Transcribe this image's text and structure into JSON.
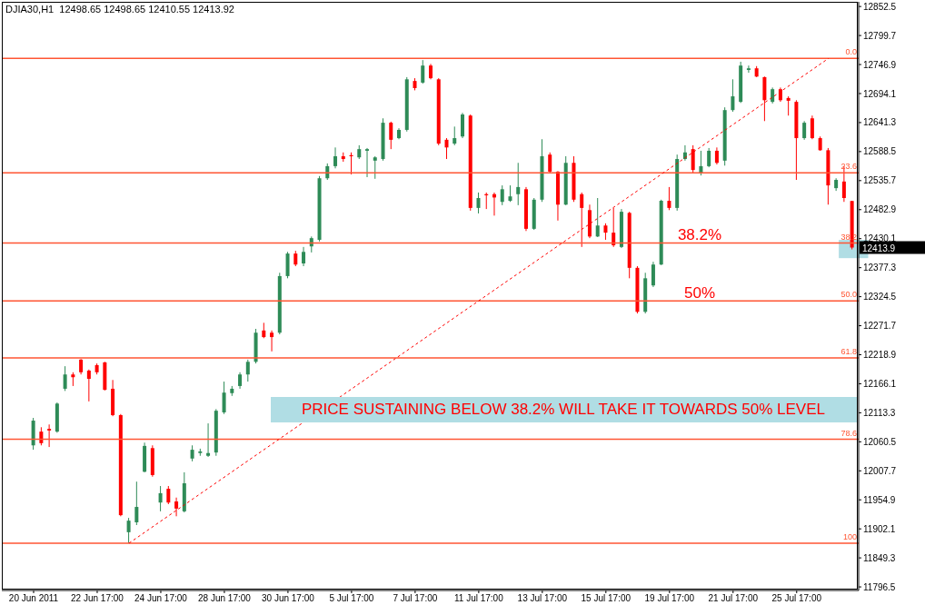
{
  "chart_data": {
    "type": "candlestick",
    "title": "DJIA30,H1  12498.65 12498.65 12410.55 12413.92",
    "categories": [
      "20 Jun 2011",
      null,
      null,
      null,
      null,
      null,
      null,
      null,
      "22 Jun 17:00",
      null,
      null,
      null,
      null,
      null,
      null,
      null,
      "24 Jun 17:00",
      null,
      null,
      null,
      null,
      null,
      null,
      null,
      "28 Jun 17:00",
      null,
      null,
      null,
      null,
      null,
      null,
      null,
      "30 Jun 17:00",
      null,
      null,
      null,
      null,
      null,
      null,
      null,
      "5 Jul 17:00",
      null,
      null,
      null,
      null,
      null,
      null,
      null,
      "7 Jul 17:00",
      null,
      null,
      null,
      null,
      null,
      null,
      null,
      "11 Jul 17:00",
      null,
      null,
      null,
      null,
      null,
      null,
      null,
      "13 Jul 17:00",
      null,
      null,
      null,
      null,
      null,
      null,
      null,
      "15 Jul 17:00",
      null,
      null,
      null,
      null,
      null,
      null,
      null,
      "19 Jul 17:00",
      null,
      null,
      null,
      null,
      null,
      null,
      null,
      "21 Jul 17:00",
      null,
      null,
      null,
      null,
      null,
      null,
      null,
      "25 Jul 17:00",
      null,
      null,
      null,
      null,
      null,
      null,
      null
    ],
    "ohlc": [
      [
        12054,
        12104,
        12046,
        12099
      ],
      [
        12079,
        12087,
        12054,
        12058
      ],
      [
        12084,
        12092,
        12051,
        12081
      ],
      [
        12079,
        12132,
        12077,
        12130
      ],
      [
        12157,
        12198,
        12153,
        12183
      ],
      [
        12183,
        12187,
        12162,
        12178
      ],
      [
        12210,
        12211,
        12183,
        12187
      ],
      [
        12190,
        12192,
        12134,
        12175
      ],
      [
        12200,
        12203,
        12183,
        12187
      ],
      [
        12205,
        12206,
        12154,
        12155
      ],
      [
        12157,
        12173,
        12107,
        12109
      ],
      [
        12109,
        12111,
        11925,
        11927
      ],
      [
        11896,
        11922,
        11876,
        11917
      ],
      [
        11914,
        11988,
        11909,
        11942
      ],
      [
        12006,
        12059,
        12005,
        12053
      ],
      [
        12049,
        12054,
        11997,
        12000
      ],
      [
        11950,
        11980,
        11934,
        11967
      ],
      [
        11975,
        11980,
        11947,
        11950
      ],
      [
        11952,
        11959,
        11925,
        11939
      ],
      [
        11934,
        12005,
        11932,
        11985
      ],
      [
        12030,
        12054,
        12025,
        12046
      ],
      [
        12040,
        12048,
        12035,
        12043
      ],
      [
        12035,
        12094,
        12033,
        12040
      ],
      [
        12041,
        12120,
        12035,
        12117
      ],
      [
        12114,
        12170,
        12111,
        12150
      ],
      [
        12149,
        12162,
        12144,
        12157
      ],
      [
        12162,
        12187,
        12157,
        12183
      ],
      [
        12183,
        12210,
        12170,
        12206
      ],
      [
        12206,
        12266,
        12203,
        12259
      ],
      [
        12263,
        12277,
        12249,
        12251
      ],
      [
        12259,
        12263,
        12225,
        12251
      ],
      [
        12259,
        12368,
        12256,
        12362
      ],
      [
        12362,
        12406,
        12358,
        12403
      ],
      [
        12403,
        12408,
        12380,
        12383
      ],
      [
        12385,
        12415,
        12380,
        12406
      ],
      [
        12416,
        12434,
        12405,
        12431
      ],
      [
        12428,
        12544,
        12425,
        12540
      ],
      [
        12540,
        12567,
        12537,
        12562
      ],
      [
        12562,
        12596,
        12558,
        12580
      ],
      [
        12580,
        12587,
        12570,
        12575
      ],
      [
        12582,
        12587,
        12547,
        12580
      ],
      [
        12578,
        12600,
        12575,
        12593
      ],
      [
        12590,
        12595,
        12542,
        12593
      ],
      [
        12572,
        12580,
        12539,
        12578
      ],
      [
        12575,
        12649,
        12572,
        12641
      ],
      [
        12641,
        12643,
        12593,
        12610
      ],
      [
        12613,
        12631,
        12611,
        12628
      ],
      [
        12628,
        12724,
        12625,
        12720
      ],
      [
        12717,
        12722,
        12700,
        12704
      ],
      [
        12714,
        12755,
        12712,
        12745
      ],
      [
        12745,
        12748,
        12720,
        12722
      ],
      [
        12720,
        12722,
        12600,
        12603
      ],
      [
        12610,
        12613,
        12575,
        12596
      ],
      [
        12603,
        12634,
        12600,
        12613
      ],
      [
        12616,
        12659,
        12613,
        12656
      ],
      [
        12654,
        12656,
        12481,
        12486
      ],
      [
        12486,
        12514,
        12476,
        12504
      ],
      [
        12511,
        12514,
        12484,
        12509
      ],
      [
        12511,
        12514,
        12472,
        12505
      ],
      [
        12497,
        12527,
        12491,
        12520
      ],
      [
        12499,
        12527,
        12497,
        12507
      ],
      [
        12511,
        12568,
        12491,
        12524
      ],
      [
        12520,
        12524,
        12444,
        12448
      ],
      [
        12448,
        12504,
        12446,
        12501
      ],
      [
        12501,
        12611,
        12497,
        12580
      ],
      [
        12583,
        12587,
        12550,
        12552
      ],
      [
        12552,
        12553,
        12463,
        12492
      ],
      [
        12492,
        12580,
        12491,
        12568
      ],
      [
        12568,
        12580,
        12497,
        12501
      ],
      [
        12511,
        12514,
        12415,
        12486
      ],
      [
        12482,
        12492,
        12431,
        12434
      ],
      [
        12434,
        12504,
        12433,
        12454
      ],
      [
        12454,
        12458,
        12428,
        12441
      ],
      [
        12441,
        12486,
        12415,
        12418
      ],
      [
        12415,
        12484,
        12413,
        12479
      ],
      [
        12477,
        12479,
        12358,
        12377
      ],
      [
        12377,
        12380,
        12294,
        12297
      ],
      [
        12297,
        12368,
        12294,
        12358
      ],
      [
        12345,
        12388,
        12342,
        12383
      ],
      [
        12383,
        12501,
        12382,
        12499
      ],
      [
        12499,
        12524,
        12482,
        12486
      ],
      [
        12486,
        12583,
        12481,
        12575
      ],
      [
        12575,
        12600,
        12572,
        12587
      ],
      [
        12593,
        12600,
        12550,
        12555
      ],
      [
        12550,
        12590,
        12545,
        12562
      ],
      [
        12562,
        12595,
        12560,
        12590
      ],
      [
        12590,
        12596,
        12565,
        12568
      ],
      [
        12572,
        12669,
        12563,
        12664
      ],
      [
        12664,
        12720,
        12661,
        12689
      ],
      [
        12679,
        12752,
        12677,
        12745
      ],
      [
        12737,
        12745,
        12732,
        12740
      ],
      [
        12740,
        12744,
        12724,
        12725
      ],
      [
        12724,
        12725,
        12644,
        12682
      ],
      [
        12679,
        12705,
        12676,
        12702
      ],
      [
        12702,
        12705,
        12679,
        12682
      ],
      [
        12686,
        12689,
        12654,
        12681
      ],
      [
        12679,
        12682,
        12537,
        12613
      ],
      [
        12613,
        12644,
        12610,
        12641
      ],
      [
        12649,
        12654,
        12611,
        12613
      ],
      [
        12613,
        12616,
        12590,
        12591
      ],
      [
        12591,
        12595,
        12492,
        12527
      ],
      [
        12522,
        12540,
        12517,
        12537
      ],
      [
        12534,
        12562,
        12497,
        12504
      ],
      [
        12498.65,
        12498.65,
        12410.55,
        12413.92
      ]
    ],
    "series": [
      {
        "type": "line",
        "color": "#ff0000",
        "line_style": "dashed",
        "values": [
          null,
          null,
          null,
          null,
          null,
          null,
          null,
          null,
          null,
          null,
          null,
          null,
          11876,
          null,
          null,
          null,
          null,
          null,
          null,
          null,
          null,
          null,
          null,
          null,
          null,
          null,
          null,
          null,
          null,
          null,
          null,
          null,
          null,
          null,
          null,
          null,
          null,
          null,
          null,
          null,
          null,
          null,
          null,
          null,
          null,
          null,
          null,
          null,
          null,
          null,
          null,
          null,
          null,
          null,
          null,
          null,
          null,
          null,
          null,
          null,
          null,
          null,
          null,
          null,
          null,
          null,
          null,
          null,
          null,
          null,
          null,
          null,
          null,
          null,
          null,
          null,
          null,
          null,
          null,
          null,
          null,
          null,
          null,
          null,
          null,
          null,
          null,
          null,
          null,
          null,
          null,
          null,
          null,
          null,
          null,
          null,
          null,
          null,
          null,
          null,
          12758,
          null,
          null,
          null
        ]
      }
    ],
    "ylim": [
      11790,
      12861
    ],
    "yticks": [
      11796.5,
      11849.3,
      11902.1,
      11954.9,
      12007.7,
      12060.5,
      12113.3,
      12166.1,
      12218.9,
      12271.7,
      12324.5,
      12377.3,
      12430.1,
      12482.9,
      12535.7,
      12588.5,
      12641.3,
      12694.1,
      12746.9,
      12799.7,
      12852.5
    ],
    "ref_lines": [
      {
        "axis": "y",
        "value": 12758,
        "color": "#ff5533"
      },
      {
        "axis": "y",
        "value": 12550,
        "color": "#ff5533"
      },
      {
        "axis": "y",
        "value": 12422,
        "color": "#ff5533"
      },
      {
        "axis": "y",
        "value": 12317,
        "color": "#ff5533"
      },
      {
        "axis": "y",
        "value": 12213,
        "color": "#ff5533"
      },
      {
        "axis": "y",
        "value": 12065,
        "color": "#ff5533"
      },
      {
        "axis": "y",
        "value": 11876,
        "color": "#ff5533"
      }
    ],
    "annotations": [
      "38.2%",
      "50%",
      "PRICE SUSTAINING BELOW 38.2% WILL TAKE IT TOWARDS 50% LEVEL",
      "12413.9",
      {
        "text": "0.0",
        "y": 12758
      },
      {
        "text": "23.6",
        "y": 12550
      },
      {
        "text": "38.2",
        "y": 12422
      },
      {
        "text": "50.0",
        "y": 12317
      },
      {
        "text": "61.8",
        "y": 12213
      },
      {
        "text": "78.6",
        "y": 12065
      },
      {
        "text": "100",
        "y": 11876
      }
    ]
  }
}
